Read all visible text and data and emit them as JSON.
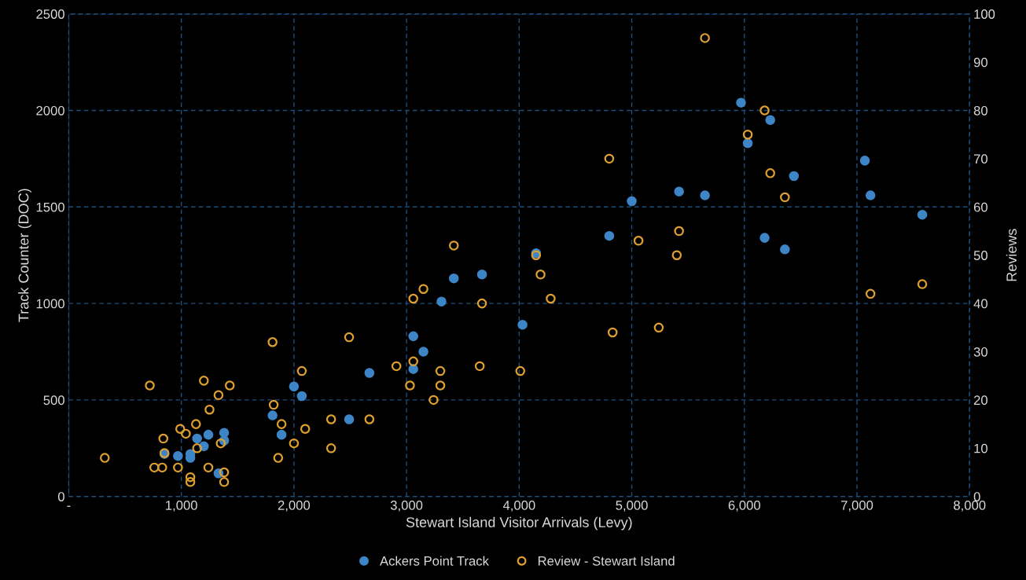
{
  "chart_data": {
    "type": "scatter",
    "xlabel": "Stewart Island Visitor Arrivals (Levy)",
    "ylabel": "Track Counter (DOC)",
    "y2label": "Reviews",
    "xlim": [
      0,
      8000
    ],
    "xticks": [
      {
        "value": 0,
        "label": "-"
      },
      {
        "value": 1000,
        "label": "1,000"
      },
      {
        "value": 2000,
        "label": "2,000"
      },
      {
        "value": 3000,
        "label": "3,000"
      },
      {
        "value": 4000,
        "label": "4,000"
      },
      {
        "value": 5000,
        "label": "5,000"
      },
      {
        "value": 6000,
        "label": "6,000"
      },
      {
        "value": 7000,
        "label": "7,000"
      },
      {
        "value": 8000,
        "label": "8,000"
      }
    ],
    "ylim": [
      0,
      2500
    ],
    "yticks": [
      0,
      500,
      1000,
      1500,
      2000,
      2500
    ],
    "y2lim": [
      0,
      100
    ],
    "y2ticks": [
      0,
      10,
      20,
      30,
      40,
      50,
      60,
      70,
      80,
      90,
      100
    ],
    "grid": true,
    "legend": "bottom",
    "marker": "circle",
    "series": [
      {
        "name": "Ackers Point Track",
        "color": "#3d85c6",
        "x": [
          850,
          970,
          1080,
          1080,
          1140,
          1200,
          1240,
          1380,
          1380,
          1330,
          1810,
          1890,
          2000,
          2070,
          2490,
          2670,
          3060,
          3150,
          3060,
          3310,
          3420,
          3670,
          4150,
          4030,
          4800,
          5000,
          5420,
          5650,
          5970,
          6230,
          6030,
          6180,
          6360,
          6440,
          7070,
          7120,
          7580
        ],
        "values": [
          220,
          210,
          220,
          200,
          300,
          260,
          320,
          330,
          290,
          120,
          420,
          320,
          570,
          520,
          400,
          640,
          830,
          750,
          660,
          1010,
          1130,
          1150,
          1260,
          890,
          1350,
          1530,
          1580,
          1560,
          2040,
          1950,
          1830,
          1340,
          1280,
          1660,
          1740,
          1560,
          1460
        ]
      },
      {
        "name": "Review - Stewart Island",
        "color": "#e0a030",
        "axis": "y2",
        "x": [
          320,
          720,
          760,
          830,
          840,
          850,
          970,
          990,
          1040,
          1080,
          1080,
          1130,
          1140,
          1200,
          1240,
          1250,
          1330,
          1350,
          1380,
          1380,
          1430,
          1810,
          1820,
          1860,
          1890,
          2000,
          2070,
          2100,
          2330,
          2330,
          2490,
          2670,
          2910,
          3060,
          3030,
          3060,
          3150,
          3240,
          3300,
          3300,
          3420,
          3650,
          3670,
          4010,
          4150,
          4190,
          4280,
          5650,
          4800,
          6180,
          6030,
          6230,
          6360,
          5420,
          5060,
          5400,
          5240,
          4830,
          7120,
          7580
        ],
        "values": [
          8,
          23,
          6,
          6,
          12,
          9,
          6,
          14,
          13,
          4,
          3,
          15,
          10,
          24,
          6,
          18,
          21,
          11,
          5,
          3,
          23,
          32,
          19,
          8,
          15,
          11,
          26,
          14,
          16,
          10,
          33,
          16,
          27,
          28,
          23,
          41,
          43,
          20,
          23,
          26,
          52,
          27,
          40,
          26,
          50,
          46,
          41,
          95,
          70,
          80,
          75,
          67,
          62,
          55,
          53,
          50,
          35,
          34,
          42,
          44
        ]
      }
    ]
  }
}
